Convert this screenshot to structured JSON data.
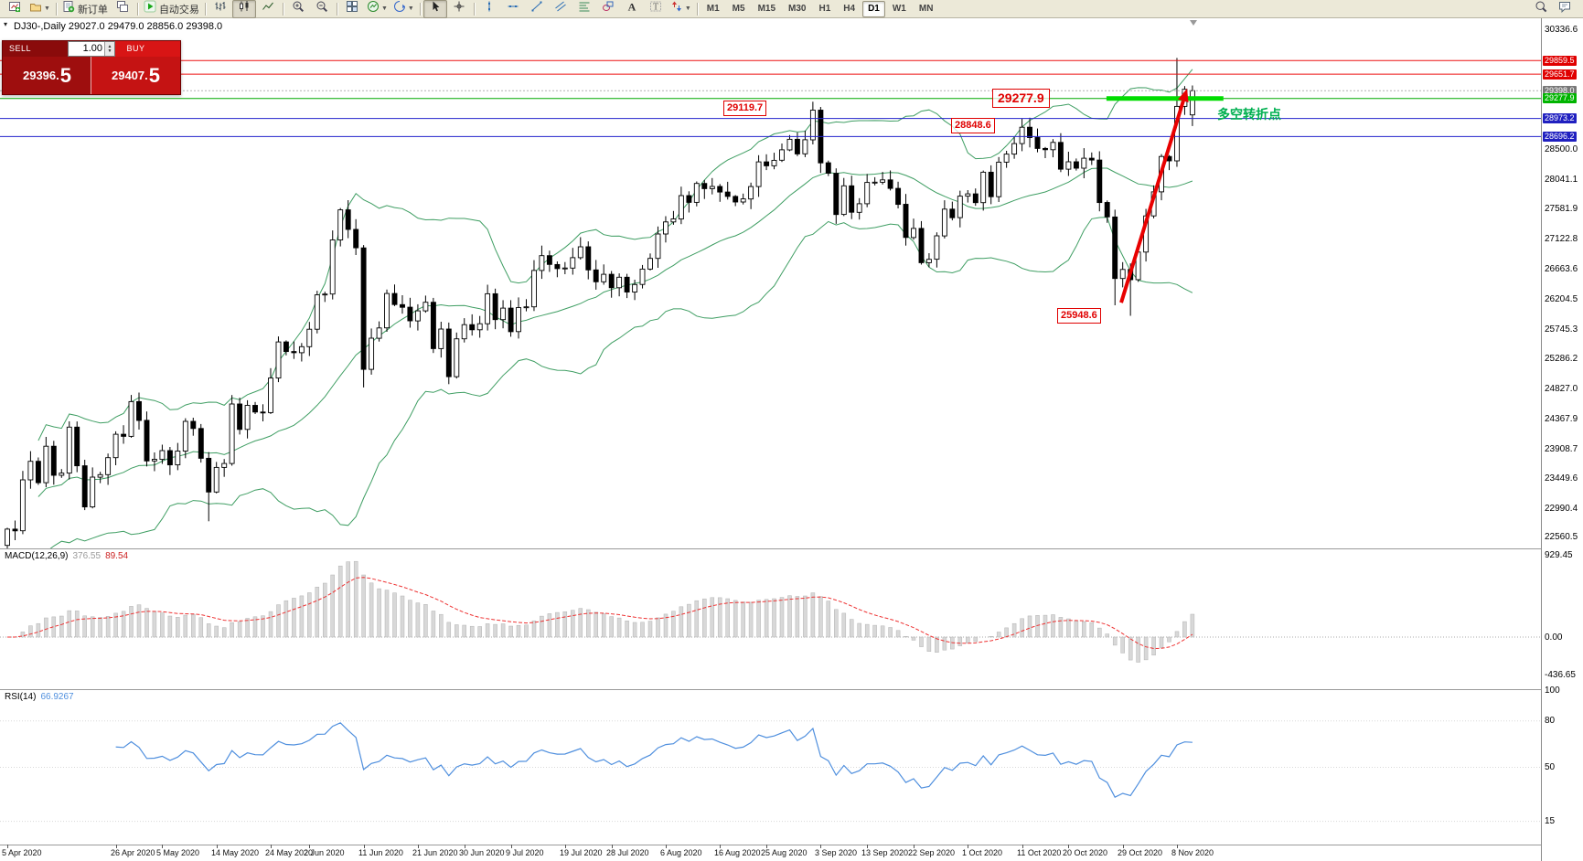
{
  "toolbar": {
    "items": [
      {
        "name": "new-chart-button",
        "icon": "new-chart"
      },
      {
        "name": "profiles-button",
        "icon": "profiles",
        "caret": true
      },
      {
        "sep": true
      },
      {
        "name": "new-order-button",
        "icon": "new-order",
        "label": "新订单"
      },
      {
        "name": "chart-windows-button",
        "icon": "cascade"
      },
      {
        "sep": true
      },
      {
        "name": "auto-trading-button",
        "icon": "auto-play",
        "label": "自动交易"
      },
      {
        "sep": true
      },
      {
        "name": "bar-chart-button",
        "icon": "bars"
      },
      {
        "name": "candlestick-chart-button",
        "icon": "candles",
        "active": true
      },
      {
        "name": "line-chart-button",
        "icon": "line-chart"
      },
      {
        "sep": true
      },
      {
        "name": "zoom-in-button",
        "icon": "zoom-in"
      },
      {
        "name": "zoom-out-button",
        "icon": "zoom-out"
      },
      {
        "sep": true
      },
      {
        "name": "tile-windows-button",
        "icon": "tile"
      },
      {
        "name": "indicators-button",
        "icon": "indicators",
        "caret": true
      },
      {
        "name": "templates-button",
        "icon": "templates",
        "caret": true
      },
      {
        "sep": true
      },
      {
        "name": "cursor-button",
        "icon": "cursor",
        "active": true
      },
      {
        "name": "crosshair-button",
        "icon": "crosshair"
      },
      {
        "sep": true
      },
      {
        "name": "vertical-line-button",
        "icon": "vline"
      },
      {
        "name": "horizontal-line-button",
        "icon": "hline"
      },
      {
        "name": "trendline-button",
        "icon": "trend"
      },
      {
        "name": "channel-button",
        "icon": "channel"
      },
      {
        "name": "fibonacci-button",
        "icon": "fibo"
      },
      {
        "name": "shapes-button",
        "icon": "shapes"
      },
      {
        "name": "text-button",
        "icon": "text-A"
      },
      {
        "name": "text-label-button",
        "icon": "label-T"
      },
      {
        "name": "arrows-button",
        "icon": "arrows-tool",
        "caret": true
      },
      {
        "sep": true
      }
    ],
    "timeframes": [
      "M1",
      "M5",
      "M15",
      "M30",
      "H1",
      "H4",
      "D1",
      "W1",
      "MN"
    ],
    "active_timeframe": "D1",
    "right_items": [
      {
        "name": "search-button",
        "icon": "search"
      },
      {
        "name": "chat-button",
        "icon": "chat"
      }
    ]
  },
  "chart_header": {
    "text": "DJ30-,Daily  29027.0 29479.0 28856.0 29398.0"
  },
  "one_click": {
    "sell_label": "SELL",
    "buy_label": "BUY",
    "volume": "1.00",
    "sell_price_main": "29396.",
    "sell_price_big": "5",
    "buy_price_main": "29407.",
    "buy_price_big": "5"
  },
  "indicators": {
    "macd_name": "MACD(12,26,9)",
    "macd_main": "376.55",
    "macd_signal": "89.54",
    "rsi_name": "RSI(14)",
    "rsi_value": "66.9267"
  },
  "axes": {
    "price_labels": [
      {
        "text": "30336.6",
        "price": 30336.6
      },
      {
        "text": "28500.0",
        "price": 28500.0
      },
      {
        "text": "28041.1",
        "price": 28041.1
      },
      {
        "text": "27581.9",
        "price": 27581.9
      },
      {
        "text": "27122.8",
        "price": 27122.8
      },
      {
        "text": "26663.6",
        "price": 26663.6
      },
      {
        "text": "26204.5",
        "price": 26204.5
      },
      {
        "text": "25745.3",
        "price": 25745.3
      },
      {
        "text": "25286.2",
        "price": 25286.2
      },
      {
        "text": "24827.0",
        "price": 24827.0
      },
      {
        "text": "24367.9",
        "price": 24367.9
      },
      {
        "text": "23908.7",
        "price": 23908.7
      },
      {
        "text": "23449.6",
        "price": 23449.6
      },
      {
        "text": "22990.4",
        "price": 22990.4
      },
      {
        "text": "22560.5",
        "price": 22560.5
      }
    ],
    "price_badges": [
      {
        "text": "29859.5",
        "price": 29859.5,
        "bg": "#e00000"
      },
      {
        "text": "29651.7",
        "price": 29651.7,
        "bg": "#e00000"
      },
      {
        "text": "29398.0",
        "price": 29398.0,
        "bg": "#787878"
      },
      {
        "text": "29277.9",
        "price": 29277.9,
        "bg": "#00b400"
      },
      {
        "text": "28973.2",
        "price": 28973.2,
        "bg": "#2020c0"
      },
      {
        "text": "28696.2",
        "price": 28696.2,
        "bg": "#2020c0"
      }
    ],
    "macd_labels": [
      {
        "text": "929.45",
        "v": 929.45
      },
      {
        "text": "0.00",
        "v": 0
      },
      {
        "text": "-436.65",
        "v": -436.65
      }
    ],
    "rsi_labels": [
      {
        "text": "100",
        "v": 100
      },
      {
        "text": "80",
        "v": 80
      },
      {
        "text": "50",
        "v": 50
      },
      {
        "text": "15",
        "v": 15
      }
    ],
    "dates": [
      {
        "i": 0,
        "text": "5 Apr 2020"
      },
      {
        "i": 14,
        "text": "26 Apr 2020"
      },
      {
        "i": 20,
        "text": "5 May 2020"
      },
      {
        "i": 27,
        "text": "14 May 2020"
      },
      {
        "i": 34,
        "text": "24 May 2020"
      },
      {
        "i": 39,
        "text": "2 Jun 2020"
      },
      {
        "i": 46,
        "text": "11 Jun 2020"
      },
      {
        "i": 53,
        "text": "21 Jun 2020"
      },
      {
        "i": 59,
        "text": "30 Jun 2020"
      },
      {
        "i": 65,
        "text": "9 Jul 2020"
      },
      {
        "i": 72,
        "text": "19 Jul 2020"
      },
      {
        "i": 78,
        "text": "28 Jul 2020"
      },
      {
        "i": 85,
        "text": "6 Aug 2020"
      },
      {
        "i": 92,
        "text": "16 Aug 2020"
      },
      {
        "i": 98,
        "text": "25 Aug 2020"
      },
      {
        "i": 105,
        "text": "3 Sep 2020"
      },
      {
        "i": 111,
        "text": "13 Sep 2020"
      },
      {
        "i": 117,
        "text": "22 Sep 2020"
      },
      {
        "i": 124,
        "text": "1 Oct 2020"
      },
      {
        "i": 131,
        "text": "11 Oct 2020"
      },
      {
        "i": 137,
        "text": "20 Oct 2020"
      },
      {
        "i": 144,
        "text": "29 Oct 2020"
      },
      {
        "i": 151,
        "text": "8 Nov 2020"
      }
    ]
  },
  "chart_data": {
    "type": "candlestick",
    "symbol": "DJ30-",
    "period": "Daily",
    "last_ohlc": {
      "open": 29027.0,
      "high": 29479.0,
      "low": 28856.0,
      "close": 29398.0
    },
    "price_axis": {
      "min": 22440,
      "max": 30480
    },
    "closes": [
      22680,
      22654,
      23434,
      23719,
      23391,
      23950,
      23504,
      23538,
      24242,
      23650,
      23019,
      23476,
      23515,
      23775,
      24134,
      24102,
      24634,
      24346,
      23724,
      23749,
      23883,
      23665,
      23876,
      24331,
      24222,
      23765,
      23248,
      23625,
      23685,
      24597,
      24207,
      24576,
      24474,
      24465,
      24995,
      25548,
      25401,
      25383,
      25475,
      25743,
      26270,
      26282,
      27111,
      27572,
      27272,
      26990,
      25128,
      25605,
      25763,
      26290,
      26120,
      26080,
      25871,
      26025,
      26156,
      25446,
      25746,
      25016,
      25596,
      25813,
      25735,
      25827,
      26287,
      25890,
      26067,
      25706,
      26075,
      26086,
      26643,
      26870,
      26735,
      26672,
      26681,
      26840,
      27006,
      26652,
      26470,
      26585,
      26379,
      26540,
      26313,
      26428,
      26664,
      26828,
      27202,
      27387,
      27433,
      27791,
      27687,
      27977,
      27897,
      27931,
      27845,
      27778,
      27693,
      27740,
      27930,
      28308,
      28248,
      28332,
      28492,
      28654,
      28430,
      28646,
      29101,
      28293,
      28133,
      27501,
      27940,
      27535,
      27666,
      27993,
      27996,
      28032,
      27902,
      27657,
      27148,
      27288,
      26763,
      26815,
      27174,
      27584,
      27453,
      27782,
      27817,
      27683,
      28149,
      27773,
      28303,
      28426,
      28587,
      28838,
      28680,
      28514,
      28494,
      28606,
      28195,
      28309,
      28211,
      28364,
      28336,
      27685,
      27463,
      26520,
      26659,
      26502,
      26925,
      27480,
      27848,
      28390,
      28323,
      29158,
      29420,
      29398
    ],
    "ohlc_overrides": {
      "0": {
        "open": 22430,
        "low": 22380
      },
      "26": {
        "low": 22800
      },
      "46": {
        "low": 24850
      },
      "143": {
        "low": 26110
      },
      "145": {
        "low": 25948.6
      },
      "151": {
        "high": 29900
      },
      "153": {
        "open": 29027,
        "high": 29479,
        "low": 28856,
        "close": 29398
      }
    },
    "bollinger": {
      "period": 20,
      "deviation": 2,
      "color": "#3f9e63"
    },
    "macd": {
      "fast": 12,
      "slow": 26,
      "signal": 9,
      "hist_color": "#d8d8d8",
      "signal_color": "#ee3333"
    },
    "rsi": {
      "period": 14,
      "color": "#4f8fde"
    },
    "hlines": [
      {
        "price": 29859.5,
        "color": "#ee1111",
        "width": 1,
        "style": "solid"
      },
      {
        "price": 29651.7,
        "color": "#ee1111",
        "width": 1,
        "style": "solid"
      },
      {
        "price": 29277.9,
        "color": "#00aa00",
        "width": 1,
        "style": "solid"
      },
      {
        "price": 28973.2,
        "color": "#2222cc",
        "width": 1,
        "style": "solid"
      },
      {
        "price": 28696.2,
        "color": "#2222cc",
        "width": 1,
        "style": "solid"
      },
      {
        "price": 29398.0,
        "color": "#b0b0b0",
        "width": 1,
        "style": "dot"
      }
    ],
    "segments": [
      {
        "price": 29277.9,
        "from_index": 141.9,
        "to_index": 157.0,
        "color": "#00dd00",
        "width": 5
      }
    ],
    "arrow": {
      "from": {
        "index": 143.8,
        "price": 26150
      },
      "to": {
        "index": 152.3,
        "price": 29430
      },
      "color": "#e80000",
      "width": 4
    },
    "annotations": [
      {
        "text": "29119.7",
        "price": 29119.7,
        "x_index": 92.4,
        "style": "red-box"
      },
      {
        "text": "28848.6",
        "price": 28848.6,
        "x_index": 121.8,
        "style": "red-box"
      },
      {
        "text": "29277.9",
        "price": 29277.9,
        "x_index": 127.2,
        "style": "red-box-large"
      },
      {
        "text": "25948.6",
        "price": 25948.6,
        "x_index": 135.5,
        "style": "red-box"
      },
      {
        "text": "多空转折点",
        "price": 29010,
        "x_index": 155.8,
        "style": "green-text"
      }
    ]
  }
}
